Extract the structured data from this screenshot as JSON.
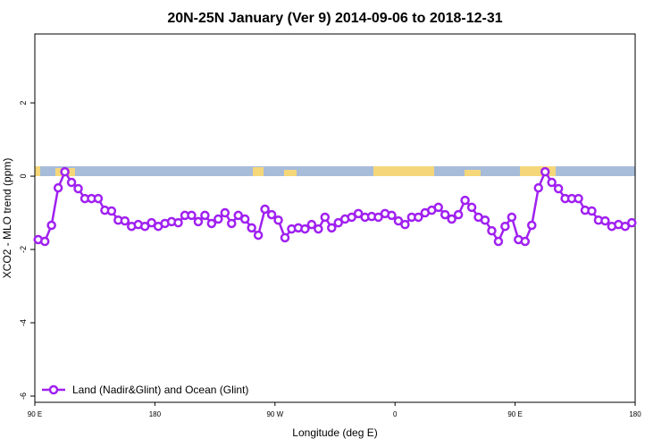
{
  "chart_data": {
    "type": "line",
    "title": "20N-25N January (Ver 9)   2014-09-06 to 2018-12-31",
    "xlabel": "Longitude (deg E)",
    "ylabel": "XCO2 - MLO trend (ppm)",
    "x": [
      92.5,
      97.5,
      102.5,
      107.5,
      112.5,
      117.5,
      122.5,
      127.5,
      132.5,
      137.5,
      142.5,
      147.5,
      152.5,
      157.5,
      162.5,
      167.5,
      172.5,
      177.5,
      182.5,
      187.5,
      192.5,
      197.5,
      202.5,
      207.5,
      212.5,
      217.5,
      222.5,
      227.5,
      232.5,
      237.5,
      242.5,
      247.5,
      252.5,
      257.5,
      262.5,
      267.5,
      272.5,
      277.5,
      282.5,
      287.5,
      292.5,
      297.5,
      302.5,
      307.5,
      312.5,
      317.5,
      322.5,
      327.5,
      332.5,
      337.5,
      342.5,
      347.5,
      352.5,
      357.5,
      362.5,
      367.5,
      372.5,
      377.5,
      382.5,
      387.5,
      392.5,
      397.5,
      402.5,
      407.5,
      412.5,
      417.5,
      422.5,
      427.5,
      432.5,
      437.5,
      442.5,
      447.5,
      452.5,
      457.5,
      462.5,
      467.5,
      472.5,
      477.5,
      482.5,
      487.5,
      492.5,
      497.5,
      502.5,
      507.5,
      512.5,
      517.5,
      522.5,
      527.5,
      532.5,
      537.5
    ],
    "series": [
      {
        "name": "Land (Nadir&Glint) and Ocean (Glint)",
        "color": "#a020f0",
        "values": [
          -1.73,
          -1.78,
          -1.34,
          -0.32,
          0.12,
          -0.17,
          -0.34,
          -0.61,
          -0.61,
          -0.61,
          -0.93,
          -0.95,
          -1.2,
          -1.22,
          -1.37,
          -1.32,
          -1.37,
          -1.27,
          -1.37,
          -1.29,
          -1.24,
          -1.27,
          -1.07,
          -1.07,
          -1.24,
          -1.07,
          -1.29,
          -1.17,
          -1.0,
          -1.29,
          -1.07,
          -1.17,
          -1.41,
          -1.61,
          -0.9,
          -1.05,
          -1.2,
          -1.68,
          -1.44,
          -1.41,
          -1.44,
          -1.32,
          -1.44,
          -1.12,
          -1.41,
          -1.27,
          -1.17,
          -1.12,
          -1.02,
          -1.12,
          -1.1,
          -1.12,
          -1.02,
          -1.07,
          -1.22,
          -1.32,
          -1.12,
          -1.12,
          -1.0,
          -0.93,
          -0.85,
          -1.05,
          -1.17,
          -1.05,
          -0.66,
          -0.85,
          -1.12,
          -1.2,
          -1.49,
          -1.78,
          -1.37,
          -1.12,
          -1.73,
          -1.78,
          -1.34,
          -0.32,
          0.12,
          -0.17,
          -0.34,
          -0.61,
          -0.61,
          -0.61,
          -0.93,
          -0.95,
          -1.2,
          -1.22,
          -1.37,
          -1.32,
          -1.37,
          -1.27
        ]
      }
    ],
    "xlim": [
      90,
      540
    ],
    "xticks": [
      {
        "value": 90,
        "label": "90 E"
      },
      {
        "value": 180,
        "label": "180"
      },
      {
        "value": 270,
        "label": "90 W"
      },
      {
        "value": 360,
        "label": "0"
      },
      {
        "value": 450,
        "label": "90 E"
      },
      {
        "value": 540,
        "label": "180"
      }
    ],
    "ylim": [
      -6.17,
      3.88
    ],
    "yticks": [
      -6,
      -4,
      -2,
      0,
      2
    ],
    "legend": "bottom-left"
  }
}
